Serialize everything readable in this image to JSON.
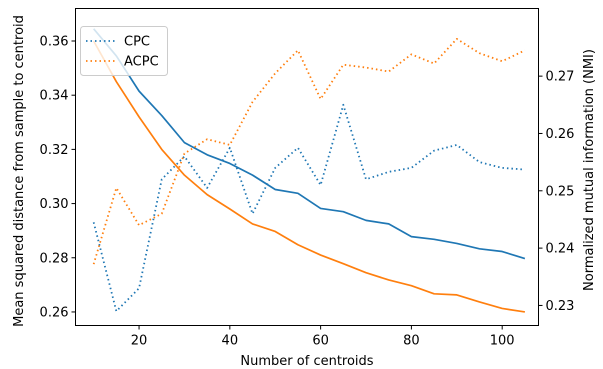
{
  "chart_data": {
    "type": "line",
    "xlabel": "Number of centroids",
    "ylabel_left": "Mean squared distance from sample to centroid",
    "ylabel_right": "Normalized mutual information (NMI)",
    "xlim": [
      6,
      108
    ],
    "ylim_left": [
      0.255,
      0.372
    ],
    "ylim_right": [
      0.2265,
      0.2818
    ],
    "x_ticks": [
      20,
      40,
      60,
      80,
      100
    ],
    "y_left_ticks": [
      0.26,
      0.28,
      0.3,
      0.32,
      0.34,
      0.36
    ],
    "y_left_tick_labels": [
      "0.26",
      "0.28",
      "0.30",
      "0.32",
      "0.34",
      "0.36"
    ],
    "y_right_ticks": [
      0.23,
      0.24,
      0.25,
      0.26,
      0.27
    ],
    "y_right_tick_labels": [
      "0.23",
      "0.24",
      "0.25",
      "0.26",
      "0.27"
    ],
    "grid": false,
    "legend_placement": "top-left",
    "x": [
      10,
      15,
      20,
      25,
      30,
      35,
      40,
      45,
      50,
      55,
      60,
      65,
      70,
      75,
      80,
      85,
      90,
      95,
      100,
      105
    ],
    "series": [
      {
        "name": "CPC",
        "axis": "left",
        "style": "solid",
        "color": "#1f77b4",
        "values": [
          0.3645,
          0.3545,
          0.3415,
          0.3325,
          0.3225,
          0.318,
          0.3148,
          0.3105,
          0.3052,
          0.3038,
          0.2982,
          0.297,
          0.2938,
          0.2925,
          0.2878,
          0.2868,
          0.2853,
          0.2833,
          0.2823,
          0.2797
        ]
      },
      {
        "name": "ACPC",
        "axis": "left",
        "style": "solid",
        "color": "#ff7f0e",
        "values": [
          0.36,
          0.345,
          0.332,
          0.32,
          0.3105,
          0.3033,
          0.298,
          0.2925,
          0.2897,
          0.2848,
          0.281,
          0.2778,
          0.2745,
          0.2718,
          0.2697,
          0.2667,
          0.2663,
          0.2637,
          0.2613,
          0.26
        ]
      },
      {
        "name": "CPC",
        "axis": "right",
        "style": "dotted",
        "color": "#1f77b4",
        "values": [
          0.2445,
          0.229,
          0.233,
          0.252,
          0.256,
          0.2505,
          0.2575,
          0.246,
          0.254,
          0.2575,
          0.251,
          0.265,
          0.252,
          0.2533,
          0.254,
          0.257,
          0.258,
          0.255,
          0.254,
          0.2537
        ]
      },
      {
        "name": "ACPC",
        "axis": "right",
        "style": "dotted",
        "color": "#ff7f0e",
        "values": [
          0.2372,
          0.2505,
          0.244,
          0.246,
          0.2565,
          0.259,
          0.258,
          0.2655,
          0.2705,
          0.2745,
          0.266,
          0.272,
          0.2715,
          0.2708,
          0.2738,
          0.2722,
          0.2765,
          0.274,
          0.2726,
          0.2745
        ]
      }
    ],
    "legend": [
      {
        "label": "CPC",
        "color": "#1f77b4",
        "style": "dotted"
      },
      {
        "label": "ACPC",
        "color": "#ff7f0e",
        "style": "dotted"
      }
    ]
  }
}
